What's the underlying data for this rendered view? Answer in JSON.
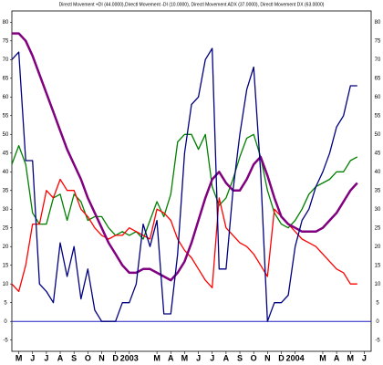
{
  "chart_data": {
    "type": "line",
    "title": "Directl Movement +DI (44.0000),Directl Movement -DI (10.0000), Directl Movement ADX (37.0000), Directl Movement DX (63.0000)",
    "x": [
      -0.5,
      0,
      0.5,
      1,
      1.5,
      2,
      2.5,
      3,
      3.5,
      4,
      4.5,
      5,
      5.5,
      6,
      6.5,
      7,
      7.5,
      8,
      8.5,
      9,
      9.5,
      10,
      10.5,
      11,
      11.5,
      12,
      12.5,
      13,
      13.5,
      14,
      14.5,
      15,
      15.5,
      16,
      16.5,
      17,
      17.5,
      18,
      18.5,
      19,
      19.5,
      20,
      20.5,
      21,
      21.5,
      22,
      22.5,
      23,
      23.5,
      24,
      24.5
    ],
    "series": [
      {
        "name": "+DI",
        "color": "#008000",
        "values": [
          42,
          47,
          42,
          29,
          26,
          26,
          33,
          34,
          27,
          34,
          32,
          27,
          28,
          28,
          25,
          23,
          24,
          23,
          24,
          22,
          27,
          32,
          28,
          34,
          48,
          50,
          50,
          46,
          50,
          36,
          31,
          33,
          38,
          44,
          49,
          50,
          44,
          35,
          29,
          26,
          25,
          27,
          30,
          34,
          36,
          37,
          38,
          40,
          40,
          43,
          44
        ]
      },
      {
        "name": "-DI",
        "color": "#ff0000",
        "values": [
          10,
          8,
          15,
          26,
          26,
          35,
          33,
          38,
          35,
          35,
          30,
          28,
          25,
          23,
          22,
          23,
          23,
          25,
          24,
          23,
          22,
          30,
          29,
          27,
          22,
          19,
          17,
          14,
          11,
          9,
          33,
          25,
          23,
          21,
          20,
          18,
          15,
          12,
          30,
          28,
          26,
          24,
          22,
          21,
          20,
          18,
          16,
          14,
          13,
          10,
          10
        ]
      },
      {
        "name": "ADX",
        "color": "#800080",
        "values": [
          77,
          77,
          75,
          71,
          66,
          61,
          56,
          51,
          46,
          42,
          38,
          33,
          29,
          25,
          21,
          18,
          15,
          13,
          13,
          14,
          14,
          13,
          12,
          11,
          13,
          16,
          21,
          27,
          33,
          38,
          40,
          37,
          35,
          35,
          38,
          42,
          44,
          39,
          33,
          28,
          26,
          25,
          24,
          24,
          24,
          25,
          27,
          29,
          32,
          35,
          37
        ]
      },
      {
        "name": "DX",
        "color": "#000080",
        "values": [
          70,
          72,
          43,
          43,
          10,
          8,
          5,
          21,
          12,
          20,
          6,
          14,
          3,
          0,
          0,
          0,
          5,
          5,
          10,
          26,
          20,
          27,
          2,
          2,
          18,
          45,
          58,
          60,
          70,
          73,
          14,
          14,
          35,
          50,
          62,
          68,
          40,
          0,
          5,
          5,
          7,
          20,
          27,
          30,
          36,
          40,
          45,
          52,
          55,
          63,
          63
        ]
      }
    ],
    "xlim": [
      -0.5,
      25.5
    ],
    "xticks": [
      {
        "value": 0,
        "label": "M"
      },
      {
        "value": 1,
        "label": "J"
      },
      {
        "value": 2,
        "label": "J"
      },
      {
        "value": 3,
        "label": "A"
      },
      {
        "value": 4,
        "label": "S"
      },
      {
        "value": 5,
        "label": "O"
      },
      {
        "value": 6,
        "label": "N"
      },
      {
        "value": 7,
        "label": "D"
      },
      {
        "value": 8,
        "label": "2003"
      },
      {
        "value": 10,
        "label": "M"
      },
      {
        "value": 11,
        "label": "A"
      },
      {
        "value": 12,
        "label": "M"
      },
      {
        "value": 13,
        "label": "J"
      },
      {
        "value": 14,
        "label": "J"
      },
      {
        "value": 15,
        "label": "A"
      },
      {
        "value": 16,
        "label": "S"
      },
      {
        "value": 17,
        "label": "O"
      },
      {
        "value": 18,
        "label": "N"
      },
      {
        "value": 19,
        "label": "D"
      },
      {
        "value": 20,
        "label": "2004"
      },
      {
        "value": 22,
        "label": "M"
      },
      {
        "value": 23,
        "label": "A"
      },
      {
        "value": 24,
        "label": "M"
      },
      {
        "value": 25,
        "label": "J"
      }
    ],
    "ylim": [
      -8,
      83
    ],
    "yticks": [
      -5,
      0,
      5,
      10,
      15,
      20,
      25,
      30,
      35,
      40,
      45,
      50,
      55,
      60,
      65,
      70,
      75,
      80
    ],
    "reference_line": 0
  }
}
